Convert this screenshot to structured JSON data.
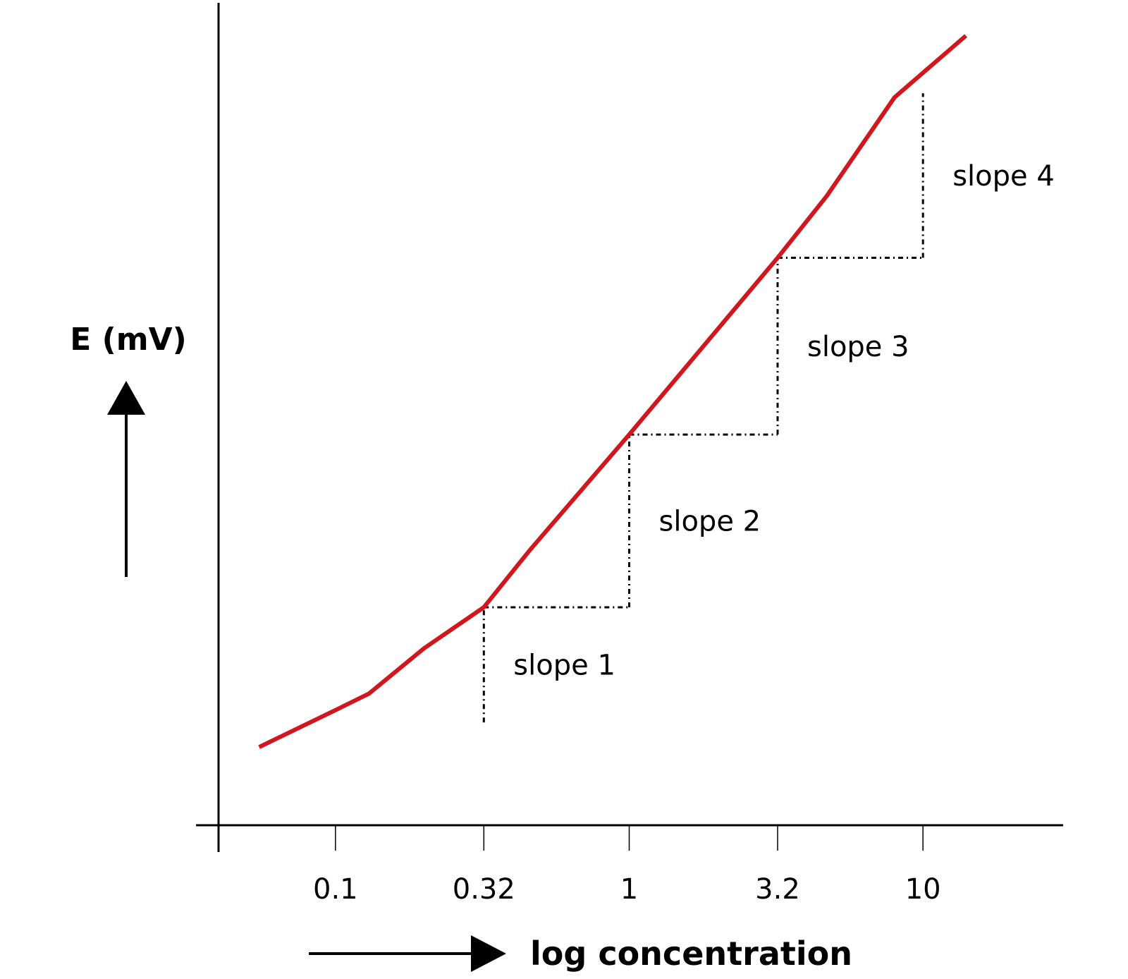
{
  "chart_data": {
    "type": "line",
    "title": "",
    "ylabel": "E (mV)",
    "xlabel": "log concentration",
    "x_scale": "log",
    "xlim": [
      0.04,
      30
    ],
    "ylim": [
      0,
      100
    ],
    "grid": false,
    "legend": "none",
    "x_ticks": [
      {
        "value": 0.1,
        "label": "0.1"
      },
      {
        "value": 0.32,
        "label": "0.32"
      },
      {
        "value": 1,
        "label": "1"
      },
      {
        "value": 3.2,
        "label": "3.2"
      },
      {
        "value": 10,
        "label": "10"
      }
    ],
    "series": [
      {
        "color": "#d0171d",
        "points": [
          {
            "x": 0.055,
            "y": 9.5
          },
          {
            "x": 0.1,
            "y": 14
          },
          {
            "x": 0.13,
            "y": 16
          },
          {
            "x": 0.2,
            "y": 21.5
          },
          {
            "x": 0.32,
            "y": 26.5
          },
          {
            "x": 0.46,
            "y": 33.5
          },
          {
            "x": 1,
            "y": 47.5
          },
          {
            "x": 3.2,
            "y": 69
          },
          {
            "x": 4.7,
            "y": 76.5
          },
          {
            "x": 8,
            "y": 88.5
          },
          {
            "x": 14,
            "y": 96
          }
        ]
      }
    ],
    "slopes": [
      {
        "label": "slope 1",
        "x_from": 0.32,
        "x_to": 1,
        "y_from": 12.5,
        "y_to": 26.5
      },
      {
        "label": "slope 2",
        "x_from": 1,
        "x_to": 3.2,
        "y_from": 26.5,
        "y_to": 47.5
      },
      {
        "label": "slope 3",
        "x_from": 3.2,
        "x_to": 10,
        "y_from": 47.5,
        "y_to": 69
      },
      {
        "label": "slope 4",
        "x_from": 10,
        "x_to": 10,
        "y_from": 69,
        "y_to": 89
      }
    ]
  }
}
